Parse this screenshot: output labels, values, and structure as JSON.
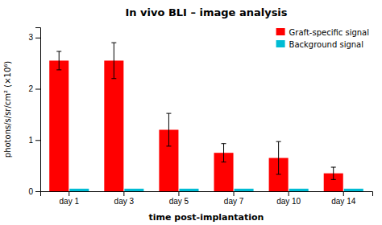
{
  "chart_data": {
    "type": "bar",
    "title": "In vivo BLI – image analysis",
    "x_label": "time post-implantation",
    "y_label": "photons/s/sr/cm² (×10⁶)",
    "categories": [
      "day 1",
      "day 3",
      "day 5",
      "day 7",
      "day 10",
      "day 14"
    ],
    "series": [
      {
        "name": "Graft-specific signal",
        "color": "#ff0000",
        "values": [
          2.55,
          2.55,
          1.2,
          0.75,
          0.65,
          0.35
        ],
        "errors": [
          0.18,
          0.35,
          0.32,
          0.18,
          0.32,
          0.12
        ]
      },
      {
        "name": "Background signal",
        "color": "#00bcd4",
        "values": [
          0.05,
          0.05,
          0.05,
          0.05,
          0.05,
          0.05
        ]
      }
    ],
    "ylim": [
      0,
      3.2
    ],
    "yticks": [
      0,
      1,
      2,
      3
    ],
    "grid": false,
    "legend": "upper right"
  }
}
